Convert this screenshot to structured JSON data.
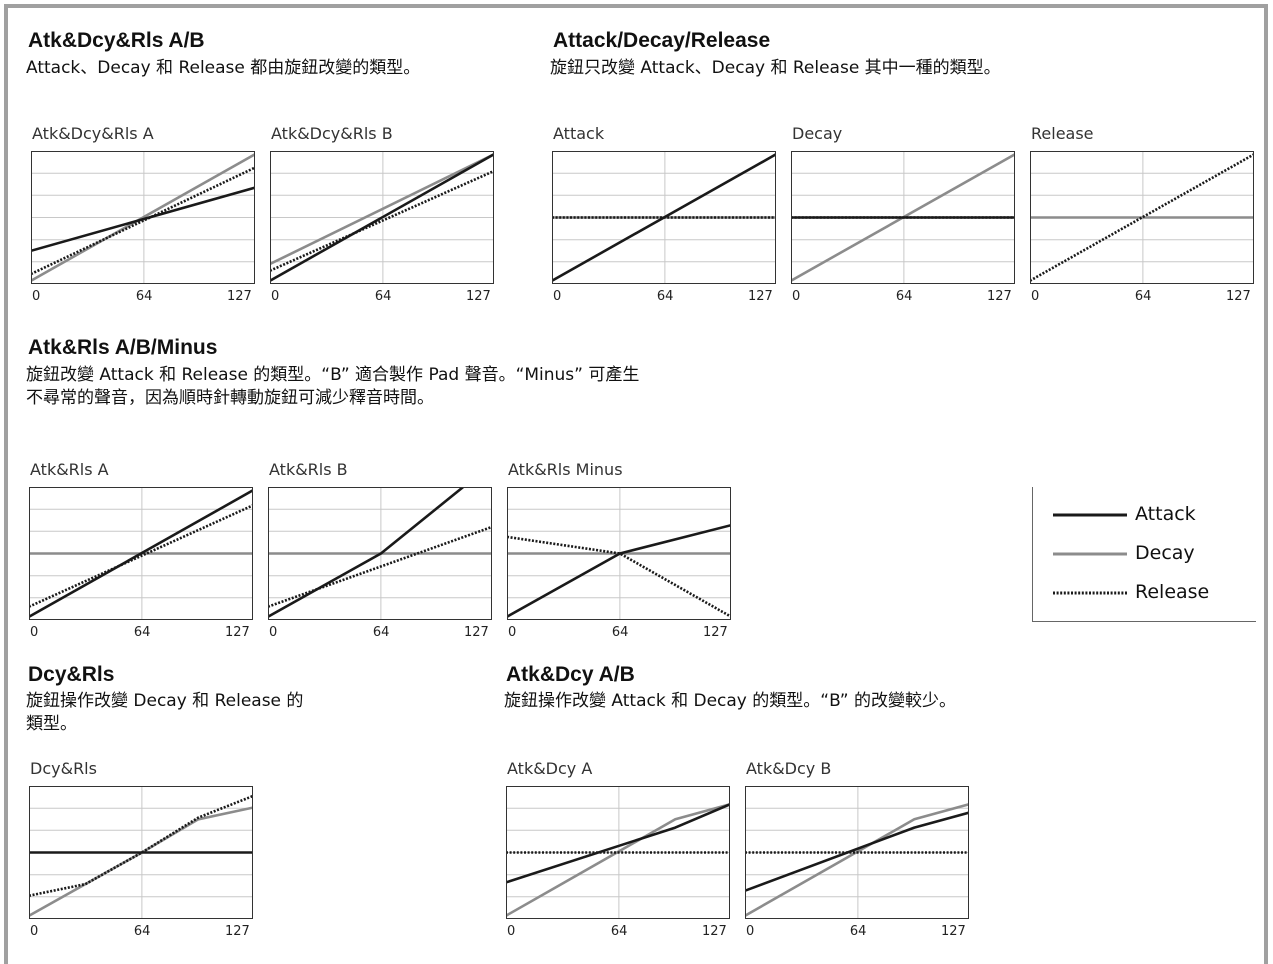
{
  "colors": {
    "attack": "#1a1a1a",
    "decay": "#8c8c8c",
    "release": "#1a1a1a",
    "grid": "#c8c8c8",
    "frame": "#a0a0a0"
  },
  "sections": {
    "atk_dcy_rls_ab": {
      "title": "Atk&Dcy&Rls A/B",
      "desc": "Attack、Decay 和 Release 都由旋鈕改變的類型。"
    },
    "attack_decay_release": {
      "title": "Attack/Decay/Release",
      "desc": "旋鈕只改變 Attack、Decay 和 Release 其中一種的類型。"
    },
    "atk_rls_ab_minus": {
      "title": "Atk&Rls A/B/Minus",
      "desc": "旋鈕改變 Attack 和 Release 的類型。“B” 適合製作 Pad 聲音。“Minus” 可產生\n不尋常的聲音，因為順時針轉動旋鈕可減少釋音時間。"
    },
    "dcy_rls": {
      "title": "Dcy&Rls",
      "desc": "旋鈕操作改變 Decay 和 Release 的\n類型。"
    },
    "atk_dcy_ab": {
      "title": "Atk&Dcy A/B",
      "desc": "旋鈕操作改變 Attack 和 Decay 的類型。“B” 的改變較少。"
    }
  },
  "legend": [
    {
      "key": "attack",
      "label": "Attack",
      "style": "solid-dark"
    },
    {
      "key": "decay",
      "label": "Decay",
      "style": "solid-gray"
    },
    {
      "key": "release",
      "label": "Release",
      "style": "dotted"
    }
  ],
  "chart_data": [
    {
      "type": "line",
      "title": "Atk&Dcy&Rls A",
      "xlim": [
        0,
        127
      ],
      "ylim": [
        -2,
        2
      ],
      "xticks": [
        "0",
        "64",
        "127"
      ],
      "series": [
        {
          "name": "Decay",
          "x": [
            0,
            127
          ],
          "y": [
            -1.9,
            1.9
          ]
        },
        {
          "name": "Release",
          "x": [
            0,
            127
          ],
          "y": [
            -1.7,
            1.5
          ]
        },
        {
          "name": "Attack",
          "x": [
            0,
            127
          ],
          "y": [
            -1.0,
            0.9
          ]
        }
      ]
    },
    {
      "type": "line",
      "title": "Atk&Dcy&Rls B",
      "xlim": [
        0,
        127
      ],
      "ylim": [
        -2,
        2
      ],
      "xticks": [
        "0",
        "64",
        "127"
      ],
      "series": [
        {
          "name": "Decay",
          "x": [
            0,
            127
          ],
          "y": [
            -1.4,
            1.9
          ]
        },
        {
          "name": "Release",
          "x": [
            0,
            127
          ],
          "y": [
            -1.6,
            1.4
          ]
        },
        {
          "name": "Attack",
          "x": [
            0,
            127
          ],
          "y": [
            -1.9,
            1.9
          ]
        }
      ]
    },
    {
      "type": "line",
      "title": "Attack",
      "xlim": [
        0,
        127
      ],
      "ylim": [
        -2,
        2
      ],
      "xticks": [
        "0",
        "64",
        "127"
      ],
      "series": [
        {
          "name": "Decay",
          "x": [
            0,
            127
          ],
          "y": [
            0,
            0
          ]
        },
        {
          "name": "Attack",
          "x": [
            0,
            127
          ],
          "y": [
            -1.9,
            1.9
          ]
        },
        {
          "name": "Release",
          "x": [
            0,
            127
          ],
          "y": [
            0,
            0
          ]
        }
      ]
    },
    {
      "type": "line",
      "title": "Decay",
      "xlim": [
        0,
        127
      ],
      "ylim": [
        -2,
        2
      ],
      "xticks": [
        "0",
        "64",
        "127"
      ],
      "series": [
        {
          "name": "Decay",
          "x": [
            0,
            127
          ],
          "y": [
            -1.9,
            1.9
          ]
        },
        {
          "name": "Release",
          "x": [
            0,
            127
          ],
          "y": [
            0,
            0
          ]
        },
        {
          "name": "Attack",
          "x": [
            0,
            127
          ],
          "y": [
            0,
            0
          ]
        }
      ]
    },
    {
      "type": "line",
      "title": "Release",
      "xlim": [
        0,
        127
      ],
      "ylim": [
        -2,
        2
      ],
      "xticks": [
        "0",
        "64",
        "127"
      ],
      "series": [
        {
          "name": "Decay",
          "x": [
            0,
            127
          ],
          "y": [
            0,
            0
          ]
        },
        {
          "name": "Release",
          "x": [
            0,
            127
          ],
          "y": [
            -1.9,
            1.9
          ]
        }
      ]
    },
    {
      "type": "line",
      "title": "Atk&Rls A",
      "xlim": [
        0,
        127
      ],
      "ylim": [
        -2,
        2
      ],
      "xticks": [
        "0",
        "64",
        "127"
      ],
      "series": [
        {
          "name": "Decay",
          "x": [
            0,
            127
          ],
          "y": [
            0,
            0
          ]
        },
        {
          "name": "Release",
          "x": [
            0,
            127
          ],
          "y": [
            -1.6,
            1.45
          ]
        },
        {
          "name": "Attack",
          "x": [
            0,
            127
          ],
          "y": [
            -1.9,
            1.9
          ]
        }
      ]
    },
    {
      "type": "line",
      "title": "Atk&Rls B",
      "xlim": [
        0,
        127
      ],
      "ylim": [
        -2,
        2
      ],
      "xticks": [
        "0",
        "64",
        "127"
      ],
      "series": [
        {
          "name": "Decay",
          "x": [
            0,
            127
          ],
          "y": [
            0,
            0
          ]
        },
        {
          "name": "Release",
          "x": [
            0,
            127
          ],
          "y": [
            -1.6,
            0.8
          ]
        },
        {
          "name": "Attack",
          "x": [
            0,
            64,
            127
          ],
          "y": [
            -1.9,
            0,
            2.7
          ]
        }
      ]
    },
    {
      "type": "line",
      "title": "Atk&Rls Minus",
      "xlim": [
        0,
        127
      ],
      "ylim": [
        -2,
        2
      ],
      "xticks": [
        "0",
        "64",
        "127"
      ],
      "series": [
        {
          "name": "Decay",
          "x": [
            0,
            127
          ],
          "y": [
            0,
            0
          ]
        },
        {
          "name": "Release",
          "x": [
            0,
            64,
            127
          ],
          "y": [
            0.5,
            0,
            -1.9
          ]
        },
        {
          "name": "Attack",
          "x": [
            0,
            64,
            127
          ],
          "y": [
            -1.9,
            0,
            0.85
          ]
        }
      ]
    },
    {
      "type": "line",
      "title": "Dcy&Rls",
      "xlim": [
        0,
        127
      ],
      "ylim": [
        -2,
        2
      ],
      "xticks": [
        "0",
        "64",
        "127"
      ],
      "series": [
        {
          "name": "Decay",
          "x": [
            0,
            32,
            64,
            96,
            127
          ],
          "y": [
            -1.9,
            -0.95,
            0,
            1.0,
            1.35
          ]
        },
        {
          "name": "Release",
          "x": [
            0,
            32,
            64,
            96,
            127
          ],
          "y": [
            -1.3,
            -0.95,
            0,
            1.05,
            1.7
          ]
        },
        {
          "name": "Attack",
          "x": [
            0,
            127
          ],
          "y": [
            0,
            0
          ]
        }
      ]
    },
    {
      "type": "line",
      "title": "Atk&Dcy A",
      "xlim": [
        0,
        127
      ],
      "ylim": [
        -2,
        2
      ],
      "xticks": [
        "0",
        "64",
        "127"
      ],
      "series": [
        {
          "name": "Decay",
          "x": [
            0,
            96,
            127
          ],
          "y": [
            -1.9,
            1.0,
            1.45
          ]
        },
        {
          "name": "Attack",
          "x": [
            0,
            96,
            127
          ],
          "y": [
            -0.9,
            0.75,
            1.45
          ]
        },
        {
          "name": "Release",
          "x": [
            0,
            127
          ],
          "y": [
            0,
            0
          ]
        }
      ]
    },
    {
      "type": "line",
      "title": "Atk&Dcy B",
      "xlim": [
        0,
        127
      ],
      "ylim": [
        -2,
        2
      ],
      "xticks": [
        "0",
        "64",
        "127"
      ],
      "series": [
        {
          "name": "Decay",
          "x": [
            0,
            96,
            127
          ],
          "y": [
            -1.9,
            1.0,
            1.45
          ]
        },
        {
          "name": "Attack",
          "x": [
            0,
            96,
            127
          ],
          "y": [
            -1.15,
            0.75,
            1.2
          ]
        },
        {
          "name": "Release",
          "x": [
            0,
            127
          ],
          "y": [
            0,
            0
          ]
        }
      ]
    }
  ]
}
